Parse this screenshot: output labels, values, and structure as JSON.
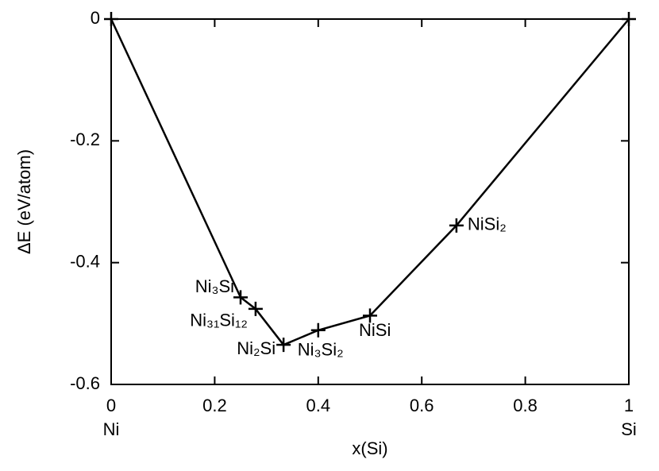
{
  "chart_data": {
    "type": "line",
    "xlabel": "x(Si)",
    "ylabel": "ΔE (eV/atom)",
    "x": [
      0,
      0.25,
      0.279,
      0.333,
      0.4,
      0.5,
      0.667,
      1
    ],
    "series": [
      {
        "color": "#000000",
        "marker": "+",
        "values": [
          0,
          -0.457,
          -0.476,
          -0.535,
          -0.511,
          -0.487,
          -0.339,
          0
        ],
        "point_labels": [
          null,
          "Ni₃Si",
          "Ni₃₁Si₁₂",
          "Ni₂Si",
          "Ni₃Si₂",
          "NiSi",
          "NiSi₂",
          null
        ]
      }
    ],
    "xlim": [
      0,
      1
    ],
    "ylim": [
      -0.6,
      0
    ],
    "xticks": [
      0,
      0.2,
      0.4,
      0.6,
      0.8,
      1
    ],
    "yticks": [
      0,
      -0.2,
      -0.4,
      -0.6
    ],
    "x_end_labels": [
      "Ni",
      "Si"
    ],
    "grid": false
  }
}
